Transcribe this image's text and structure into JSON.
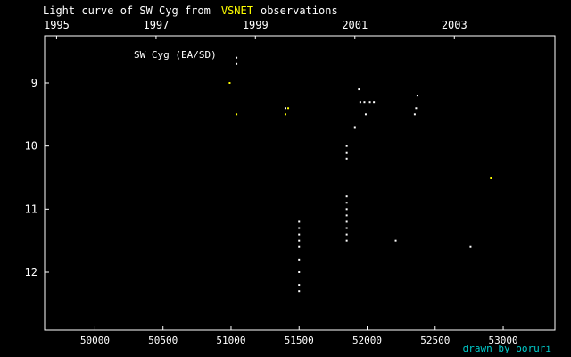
{
  "title": {
    "prefix": "Light curve of SW Cyg from",
    "highlight": "VSNET",
    "suffix": "observations"
  },
  "credit": "drawn by ooruri",
  "colors": {
    "background": "#000000",
    "axis": "#ffffff",
    "visual": "#ffffff",
    "ccd": "#ffff00",
    "credit": "#00cccc",
    "highlight": "#ffff00"
  },
  "chart_data": {
    "type": "scatter",
    "title": "Light curve of SW Cyg from VSNET observations",
    "star_label": "SW Cyg (EA/SD)",
    "xlabel": "",
    "ylabel": "",
    "xlim": [
      49630,
      53380
    ],
    "ylim": [
      12.92,
      8.25
    ],
    "y_inverted": true,
    "grid": false,
    "x_ticks": [
      {
        "value": 50000,
        "label": "50000"
      },
      {
        "value": 50500,
        "label": "50500"
      },
      {
        "value": 51000,
        "label": "51000"
      },
      {
        "value": 51500,
        "label": "51500"
      },
      {
        "value": 52000,
        "label": "52000"
      },
      {
        "value": 52500,
        "label": "52500"
      },
      {
        "value": 53000,
        "label": "53000"
      }
    ],
    "year_ticks": [
      {
        "value": 49718,
        "label": "1995"
      },
      {
        "value": 50449,
        "label": "1997"
      },
      {
        "value": 51179,
        "label": "1999"
      },
      {
        "value": 51910,
        "label": "2001"
      },
      {
        "value": 52641,
        "label": "2003"
      }
    ],
    "y_ticks": [
      {
        "value": 9,
        "label": "9"
      },
      {
        "value": 10,
        "label": "10"
      },
      {
        "value": 11,
        "label": "11"
      },
      {
        "value": 12,
        "label": "12"
      }
    ],
    "series": [
      {
        "color": "#ffffff",
        "points": [
          [
            51040,
            8.6
          ],
          [
            51040,
            8.7
          ],
          [
            51400,
            9.4
          ],
          [
            51500,
            11.2
          ],
          [
            51500,
            11.3
          ],
          [
            51500,
            11.4
          ],
          [
            51500,
            11.5
          ],
          [
            51500,
            11.6
          ],
          [
            51500,
            11.8
          ],
          [
            51500,
            12.0
          ],
          [
            51500,
            12.2
          ],
          [
            51500,
            12.3
          ],
          [
            51850,
            10.0
          ],
          [
            51850,
            10.1
          ],
          [
            51850,
            10.2
          ],
          [
            51850,
            10.8
          ],
          [
            51850,
            10.9
          ],
          [
            51850,
            11.0
          ],
          [
            51850,
            11.1
          ],
          [
            51850,
            11.2
          ],
          [
            51850,
            11.3
          ],
          [
            51850,
            11.4
          ],
          [
            51850,
            11.5
          ],
          [
            51910,
            9.7
          ],
          [
            51940,
            9.1
          ],
          [
            51950,
            9.3
          ],
          [
            51980,
            9.3
          ],
          [
            51990,
            9.5
          ],
          [
            52020,
            9.3
          ],
          [
            52050,
            9.3
          ],
          [
            52210,
            11.5
          ],
          [
            52350,
            9.5
          ],
          [
            52360,
            9.4
          ],
          [
            52370,
            9.2
          ],
          [
            52760,
            11.6
          ]
        ]
      },
      {
        "color": "#ffff00",
        "points": [
          [
            50990,
            9.0
          ],
          [
            51040,
            9.5
          ],
          [
            51400,
            9.5
          ],
          [
            51420,
            9.4
          ],
          [
            52910,
            10.5
          ]
        ]
      }
    ]
  }
}
